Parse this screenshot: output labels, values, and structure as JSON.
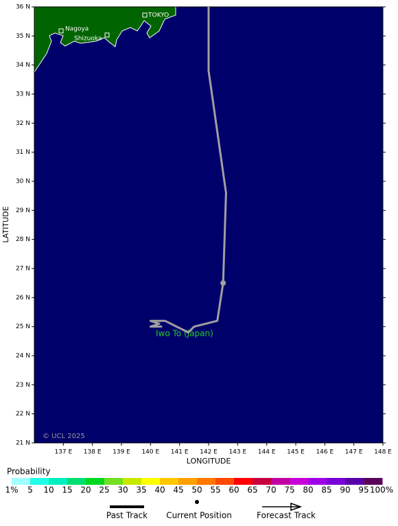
{
  "map": {
    "xlabel": "LONGITUDE",
    "ylabel": "LATITUDE",
    "xlim": [
      136,
      148
    ],
    "ylim": [
      21,
      36
    ],
    "xticks": [
      {
        "value": 137,
        "label": "137 E"
      },
      {
        "value": 138,
        "label": "138 E"
      },
      {
        "value": 139,
        "label": "139 E"
      },
      {
        "value": 140,
        "label": "140 E"
      },
      {
        "value": 141,
        "label": "141 E"
      },
      {
        "value": 142,
        "label": "142 E"
      },
      {
        "value": 143,
        "label": "143 E"
      },
      {
        "value": 144,
        "label": "144 E"
      },
      {
        "value": 145,
        "label": "145 E"
      },
      {
        "value": 146,
        "label": "146 E"
      },
      {
        "value": 147,
        "label": "147 E"
      },
      {
        "value": 148,
        "label": "148 E"
      }
    ],
    "yticks": [
      {
        "value": 21,
        "label": "21 N"
      },
      {
        "value": 22,
        "label": "22 N"
      },
      {
        "value": 23,
        "label": "23 N"
      },
      {
        "value": 24,
        "label": "24 N"
      },
      {
        "value": 25,
        "label": "25 N"
      },
      {
        "value": 26,
        "label": "26 N"
      },
      {
        "value": 27,
        "label": "27 N"
      },
      {
        "value": 28,
        "label": "28 N"
      },
      {
        "value": 29,
        "label": "29 N"
      },
      {
        "value": 30,
        "label": "30 N"
      },
      {
        "value": 31,
        "label": "31 N"
      },
      {
        "value": 32,
        "label": "32 N"
      },
      {
        "value": 33,
        "label": "33 N"
      },
      {
        "value": 34,
        "label": "34 N"
      },
      {
        "value": 35,
        "label": "35 N"
      },
      {
        "value": 36,
        "label": "36 N"
      }
    ],
    "ocean_color": "#00006b",
    "land_color": "#006400",
    "track": {
      "color": "#a0a0a0",
      "lon": [
        142.0,
        142.0,
        142.6,
        142.5,
        142.3,
        141.5,
        141.3,
        140.5,
        140.0,
        140.3,
        140.0,
        140.4
      ],
      "lat": [
        36.0,
        33.8,
        29.6,
        26.5,
        25.2,
        25.0,
        24.8,
        25.2,
        25.2,
        25.1,
        25.0,
        25.0
      ]
    },
    "current_position": {
      "lon": 142.5,
      "lat": 26.5
    },
    "places": [
      "TOKYO",
      "Nagoya",
      "Shizuoka"
    ],
    "island_label": "Iwo To (Japan)",
    "copyright": "© UCL 2025"
  },
  "legend": {
    "title": "Probability",
    "ticks": [
      {
        "value": 1,
        "label": "1%"
      },
      5,
      10,
      15,
      20,
      25,
      30,
      35,
      40,
      45,
      50,
      55,
      60,
      65,
      70,
      75,
      80,
      85,
      90,
      95,
      {
        "value": 100,
        "label": "100%"
      }
    ],
    "colors": [
      "#a0ffff",
      "#20ffe8",
      "#00f0c0",
      "#00e070",
      "#00d820",
      "#70e020",
      "#c8e800",
      "#ffff00",
      "#ffc800",
      "#ffa000",
      "#ff7800",
      "#ff4800",
      "#ff0000",
      "#c80040",
      "#c000a0",
      "#c800d8",
      "#a000e8",
      "#7800d8",
      "#5800a8",
      "#5a005a"
    ],
    "items": [
      "Past Track",
      "Current Position",
      "Forecast Track"
    ]
  }
}
